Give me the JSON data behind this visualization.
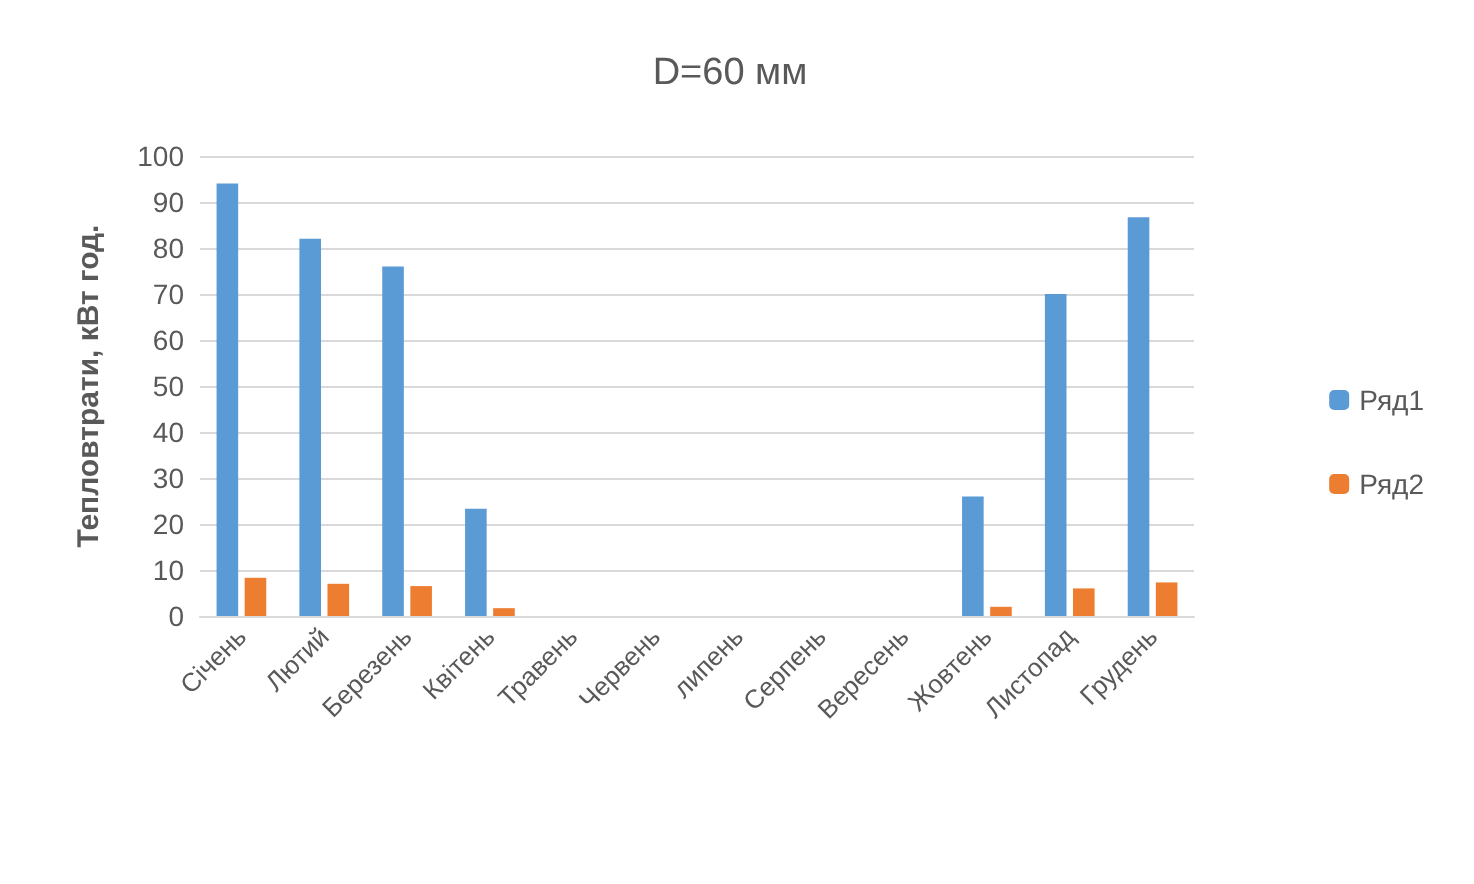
{
  "chart_data": {
    "type": "bar",
    "title": "D=60 мм",
    "ylabel": "Тепловтрати, кВт год.",
    "categories": [
      "Січень",
      "Лютий",
      "Березень",
      "Квітень",
      "Травень",
      "Червень",
      "липень",
      "Серпень",
      "Вересень",
      "Жовтень",
      "Листопад",
      "Грудень"
    ],
    "series": [
      {
        "name": "Ряд1",
        "color": "#5b9bd5",
        "values": [
          94,
          82,
          76,
          23.3,
          0,
          0,
          0,
          0,
          0,
          26,
          70,
          86.7
        ]
      },
      {
        "name": "Ряд2",
        "color": "#ed7d31",
        "values": [
          8.3,
          7,
          6.5,
          1.7,
          0,
          0,
          0,
          0,
          0,
          2,
          6,
          7.3
        ]
      }
    ],
    "ylim": [
      0,
      100
    ],
    "yticks": [
      0,
      10,
      20,
      30,
      40,
      50,
      60,
      70,
      80,
      90,
      100
    ],
    "grid": "y",
    "legend": "right"
  }
}
